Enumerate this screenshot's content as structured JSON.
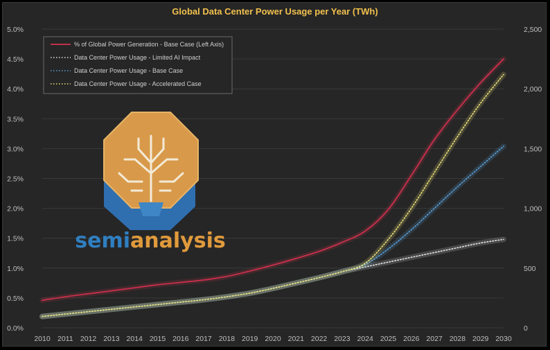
{
  "chart_data": {
    "type": "line",
    "title": "Global Data Center Power Usage per Year (TWh)",
    "categories": [
      "2010",
      "2011",
      "2012",
      "2013",
      "2014",
      "2015",
      "2016",
      "2017",
      "2018",
      "2019",
      "2020",
      "2021",
      "2022",
      "2023",
      "2024",
      "2025",
      "2026",
      "2027",
      "2028",
      "2029",
      "2030"
    ],
    "left_axis": {
      "ticks": [
        "0.0%",
        "0.5%",
        "1.0%",
        "1.5%",
        "2.0%",
        "2.5%",
        "3.0%",
        "3.5%",
        "4.0%",
        "4.5%",
        "5.0%"
      ],
      "ylim": [
        0,
        5.0
      ]
    },
    "right_axis": {
      "ticks": [
        "0",
        "500",
        "1,000",
        "1,500",
        "2,000",
        "2,500"
      ],
      "ylim": [
        0,
        2500
      ]
    },
    "grid": true,
    "legend_position": "top-left",
    "series": [
      {
        "name": "% of Global Power Generation - Base Case (Left Axis)",
        "axis": "left",
        "color": "#c0304a",
        "style": "solid",
        "values": [
          0.46,
          0.52,
          0.57,
          0.62,
          0.67,
          0.72,
          0.76,
          0.8,
          0.86,
          0.95,
          1.05,
          1.16,
          1.28,
          1.43,
          1.62,
          1.98,
          2.55,
          3.15,
          3.65,
          4.1,
          4.5
        ]
      },
      {
        "name": "Data Center Power Usage - Limited AI Impact",
        "axis": "right",
        "color": "#e6e6e6",
        "style": "dotted",
        "values": [
          95,
          115,
          135,
          155,
          175,
          195,
          215,
          235,
          260,
          290,
          330,
          375,
          420,
          470,
          510,
          550,
          590,
          630,
          670,
          710,
          740
        ]
      },
      {
        "name": "Data Center Power Usage - Base Case",
        "axis": "right",
        "color": "#5aa0d8",
        "style": "dotted",
        "values": [
          95,
          115,
          135,
          155,
          175,
          195,
          215,
          235,
          260,
          290,
          330,
          375,
          420,
          470,
          530,
          660,
          820,
          1000,
          1180,
          1350,
          1520
        ]
      },
      {
        "name": "Data Center Power Usage - Accelerated Case",
        "axis": "right",
        "color": "#f0e27a",
        "style": "dotted",
        "values": [
          95,
          115,
          135,
          155,
          175,
          195,
          215,
          235,
          260,
          290,
          330,
          375,
          420,
          470,
          540,
          740,
          1000,
          1300,
          1600,
          1880,
          2120
        ]
      }
    ]
  },
  "watermark": {
    "brand_part1": "semi",
    "brand_part2": "analysis",
    "color_1": "#2f7fc1",
    "color_2": "#e09a3c"
  }
}
